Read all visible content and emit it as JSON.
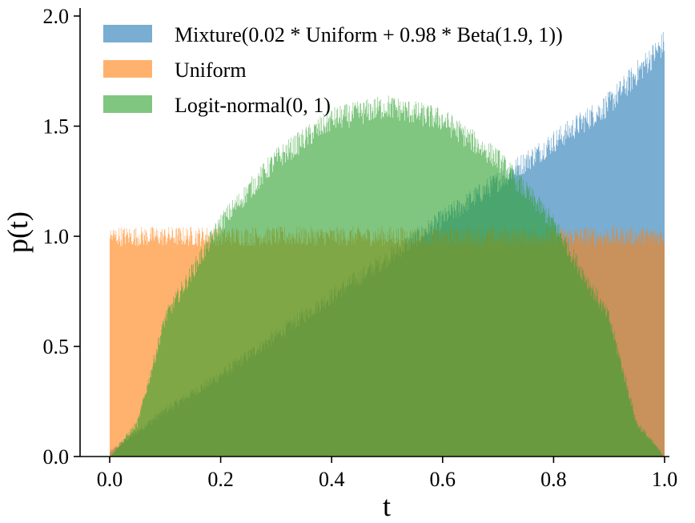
{
  "chart_data": {
    "type": "bar",
    "title": "",
    "xlabel": "t",
    "ylabel": "p(t)",
    "xlim": [
      -0.05,
      1.02
    ],
    "ylim": [
      0.0,
      2.02
    ],
    "xticks": [
      0.0,
      0.2,
      0.4,
      0.6,
      0.8,
      1.0
    ],
    "xtick_labels": [
      "0.0",
      "0.2",
      "0.4",
      "0.6",
      "0.8",
      "1.0"
    ],
    "yticks": [
      0.0,
      0.5,
      1.0,
      1.5,
      2.0
    ],
    "ytick_labels": [
      "0.0",
      "0.5",
      "1.0",
      "1.5",
      "2.0"
    ],
    "grid": false,
    "legend_position": "top-right",
    "bins": 1000,
    "alpha": 0.6,
    "series": [
      {
        "name": "Mixture(0.02 * Uniform + 0.98 * Beta(1.9, 1))",
        "color": "#1f77b4",
        "density_points": [
          [
            0.0,
            0.02
          ],
          [
            0.1,
            0.21
          ],
          [
            0.2,
            0.37
          ],
          [
            0.3,
            0.55
          ],
          [
            0.4,
            0.73
          ],
          [
            0.5,
            0.9
          ],
          [
            0.6,
            1.08
          ],
          [
            0.7,
            1.25
          ],
          [
            0.8,
            1.43
          ],
          [
            0.9,
            1.6
          ],
          [
            1.0,
            1.88
          ]
        ]
      },
      {
        "name": "Uniform",
        "color": "#ff7f0e",
        "density_points": [
          [
            0.0,
            1.0
          ],
          [
            1.0,
            1.0
          ]
        ]
      },
      {
        "name": "Logit-normal(0, 1)",
        "color": "#2ca02c",
        "density_points": [
          [
            0.0,
            0.0
          ],
          [
            0.05,
            0.15
          ],
          [
            0.1,
            0.63
          ],
          [
            0.2,
            1.06
          ],
          [
            0.3,
            1.35
          ],
          [
            0.4,
            1.53
          ],
          [
            0.5,
            1.59
          ],
          [
            0.6,
            1.53
          ],
          [
            0.7,
            1.35
          ],
          [
            0.8,
            1.06
          ],
          [
            0.9,
            0.63
          ],
          [
            0.95,
            0.15
          ],
          [
            1.0,
            0.0
          ]
        ]
      }
    ]
  }
}
